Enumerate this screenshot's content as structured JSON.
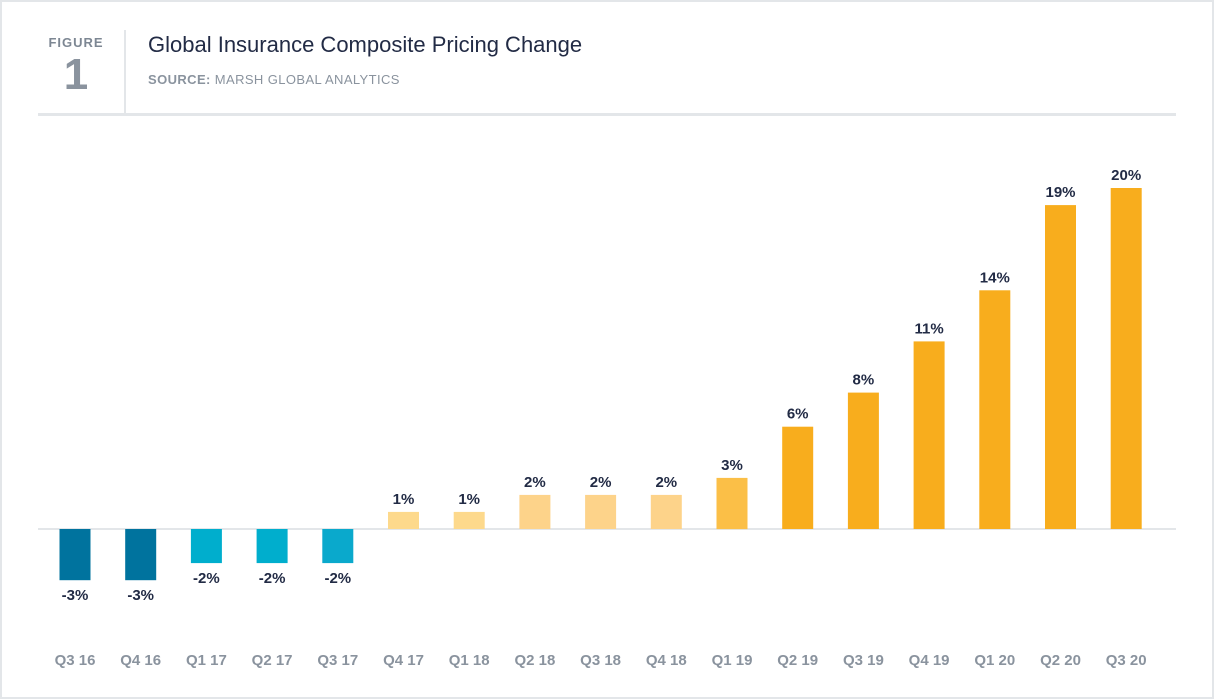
{
  "figure": {
    "label": "FIGURE",
    "number": "1"
  },
  "header": {
    "title": "Global Insurance Composite Pricing Change",
    "source_label": "SOURCE:",
    "source_text": "MARSH GLOBAL ANALYTICS"
  },
  "colors": {
    "dark_blue": "#00739e",
    "light_blue": "#00aecd",
    "pale_orange": "#fdd98c",
    "mid_orange": "#fbbf47",
    "orange": "#f8ad1d",
    "baseline": "#e3e6e9"
  },
  "chart_data": {
    "type": "bar",
    "title": "Global Insurance Composite Pricing Change",
    "categories": [
      "Q3 16",
      "Q4 16",
      "Q1 17",
      "Q2 17",
      "Q3 17",
      "Q4 17",
      "Q1 18",
      "Q2 18",
      "Q3 18",
      "Q4 18",
      "Q1 19",
      "Q2 19",
      "Q3 19",
      "Q4 19",
      "Q1 20",
      "Q2 20",
      "Q3 20"
    ],
    "values": [
      -3,
      -3,
      -2,
      -2,
      -2,
      1,
      1,
      2,
      2,
      2,
      3,
      6,
      8,
      11,
      14,
      19,
      20
    ],
    "value_labels": [
      "-3%",
      "-3%",
      "-2%",
      "-2%",
      "-2%",
      "1%",
      "1%",
      "2%",
      "2%",
      "2%",
      "3%",
      "6%",
      "8%",
      "11%",
      "14%",
      "19%",
      "20%"
    ],
    "bar_colors": [
      "#00739e",
      "#00739e",
      "#00aecd",
      "#00aecd",
      "#0aa9cc",
      "#fdd98c",
      "#fdd98c",
      "#fdd38a",
      "#fdd38a",
      "#fdd38a",
      "#fbbf47",
      "#f8ad1d",
      "#f8ad1d",
      "#f8ad1d",
      "#f8ad1d",
      "#f8ad1d",
      "#f8ad1d"
    ],
    "xlabel": "",
    "ylabel": "",
    "ylim": [
      -3,
      20
    ],
    "grid": false,
    "legend": "none"
  }
}
